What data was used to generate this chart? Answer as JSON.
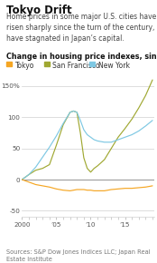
{
  "title": "Tokyo Drift",
  "subtitle": "Home prices in some major U.S. cities have\nrisen sharply since the turn of the century, but\nhave stagnated in Japan’s capital.",
  "chart_label": "Change in housing price indexes, since 2000",
  "source": "Sources: S&P Dow Jones Indices LLC; Japan Real\nEstate Institute",
  "legend": [
    "Tokyo",
    "San Francisco",
    "New York"
  ],
  "legend_colors": [
    "#f5a623",
    "#a0a832",
    "#7ec8e3"
  ],
  "legend_marker_colors": [
    "#f5a623",
    "#a0a832",
    "#7ec8e3"
  ],
  "years": [
    2000,
    2001,
    2002,
    2003,
    2004,
    2005,
    2006,
    2007,
    2007.5,
    2008,
    2008.5,
    2009,
    2009.5,
    2010,
    2010.5,
    2011,
    2012,
    2013,
    2014,
    2015,
    2016,
    2017,
    2018,
    2019
  ],
  "tokyo": [
    0,
    -4,
    -8,
    -10,
    -12,
    -15,
    -17,
    -18,
    -17,
    -16,
    -16,
    -16,
    -17,
    -17,
    -18,
    -18,
    -18,
    -16,
    -15,
    -14,
    -14,
    -13,
    -12,
    -10
  ],
  "san_francisco": [
    0,
    8,
    15,
    18,
    24,
    55,
    88,
    108,
    110,
    108,
    75,
    35,
    18,
    12,
    18,
    22,
    32,
    50,
    68,
    82,
    97,
    115,
    135,
    160
  ],
  "new_york": [
    0,
    8,
    20,
    36,
    52,
    70,
    90,
    108,
    110,
    108,
    95,
    80,
    72,
    68,
    64,
    62,
    60,
    60,
    64,
    68,
    72,
    78,
    86,
    95
  ],
  "ylim": [
    -60,
    170
  ],
  "yticks": [
    -50,
    0,
    50,
    100,
    150
  ],
  "ytick_labels": [
    "-50",
    "0",
    "50",
    "100",
    "150%"
  ],
  "xticks": [
    2000,
    2005,
    2010,
    2015
  ],
  "xtick_labels": [
    "2000",
    "’05",
    "’10",
    "’15"
  ],
  "background_color": "#ffffff",
  "grid_color": "#d0d0d0",
  "zero_line_color": "#888888",
  "title_fontsize": 8.5,
  "subtitle_fontsize": 5.5,
  "label_fontsize": 5.8,
  "tick_fontsize": 5.2,
  "legend_fontsize": 5.5,
  "source_fontsize": 4.8
}
